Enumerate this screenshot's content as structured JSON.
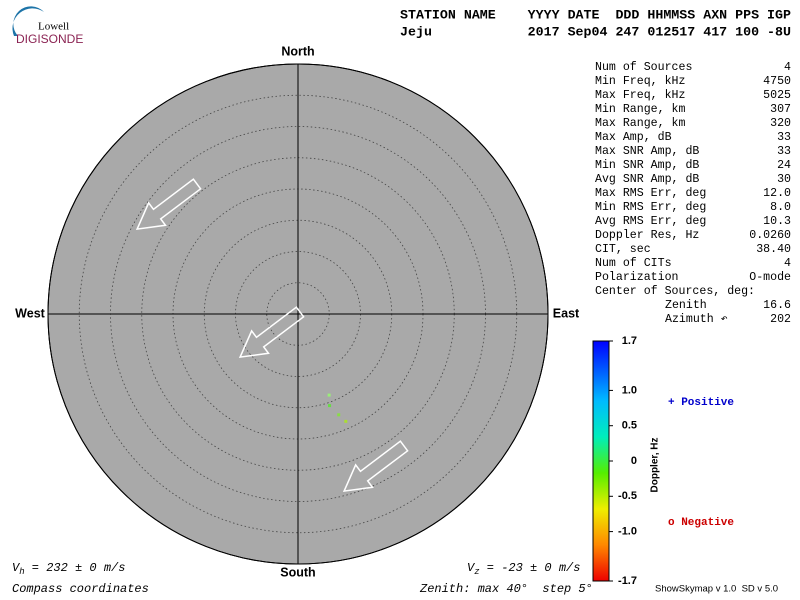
{
  "header": {
    "logo_top": "Lowell",
    "logo_bottom": "DIGISONDE",
    "columns": "STATION NAME    YYYY DATE  DDD HHMMSS AXN PPS IGP",
    "values": "Jeju            2017 Sep04 247 012517 417 100 -8U"
  },
  "stats": [
    {
      "label": "Num of Sources",
      "value": "4"
    },
    {
      "label": "Min Freq, kHz",
      "value": "4750"
    },
    {
      "label": "Max Freq, kHz",
      "value": "5025"
    },
    {
      "label": "Min Range, km",
      "value": "307"
    },
    {
      "label": "Max Range, km",
      "value": "320"
    },
    {
      "label": "Max Amp, dB",
      "value": "33"
    },
    {
      "label": "Max SNR Amp, dB",
      "value": "33"
    },
    {
      "label": "Min SNR Amp, dB",
      "value": "24"
    },
    {
      "label": "Avg SNR Amp, dB",
      "value": "30"
    },
    {
      "label": "Max RMS Err, deg",
      "value": "12.0"
    },
    {
      "label": "Min RMS Err, deg",
      "value": "8.0"
    },
    {
      "label": "Avg RMS Err, deg",
      "value": "10.3"
    },
    {
      "label": "Doppler Res, Hz",
      "value": "0.0260"
    },
    {
      "label": "CIT, sec",
      "value": "38.40"
    },
    {
      "label": "Num of CITs",
      "value": "4"
    },
    {
      "label": "Polarization",
      "value": "O-mode"
    }
  ],
  "center": {
    "label": "Center of Sources, deg:",
    "rows": [
      {
        "label": "Zenith",
        "value": "16.6"
      },
      {
        "label": "Azimuth ↶",
        "value": "202"
      }
    ]
  },
  "footer": {
    "vh_symbol": "V",
    "vh_sub": "h",
    "vh_text": " = 232 ± 0 m/s",
    "vz_symbol": "V",
    "vz_sub": "z",
    "vz_text": " = -23 ± 0 m/s",
    "coords": "Compass coordinates",
    "zenith": "Zenith: max 40°  step 5°",
    "version": "ShowSkymap v 1.0  SD v 5.0"
  },
  "chart_data": {
    "type": "skymap",
    "compass": {
      "north": "North",
      "south": "South",
      "east": "East",
      "west": "West"
    },
    "rlim": [
      0,
      40
    ],
    "rticks": [
      5,
      10,
      15,
      20,
      25,
      30,
      35,
      40
    ],
    "points": {
      "zenith": [
        13.9,
        15.5,
        17.4,
        18.8
      ],
      "azimuth": [
        159,
        161,
        158,
        156
      ],
      "colors": [
        "#99ee77",
        "#66dd44",
        "#88dd44",
        "#aadd33"
      ]
    },
    "colorbar": {
      "label": "Doppler, Hz",
      "lim": [
        -1.7,
        1.7
      ],
      "ticks": [
        1.7,
        {
          "value": 1,
          "label": "1.0"
        },
        0.5,
        0,
        -0.5,
        {
          "value": -1,
          "label": "-1.0"
        },
        -1.7
      ]
    },
    "legend": {
      "positive": "+ Positive",
      "positive_color": "#0000cc",
      "negative": "o Negative",
      "negative_color": "#cc0000"
    }
  }
}
